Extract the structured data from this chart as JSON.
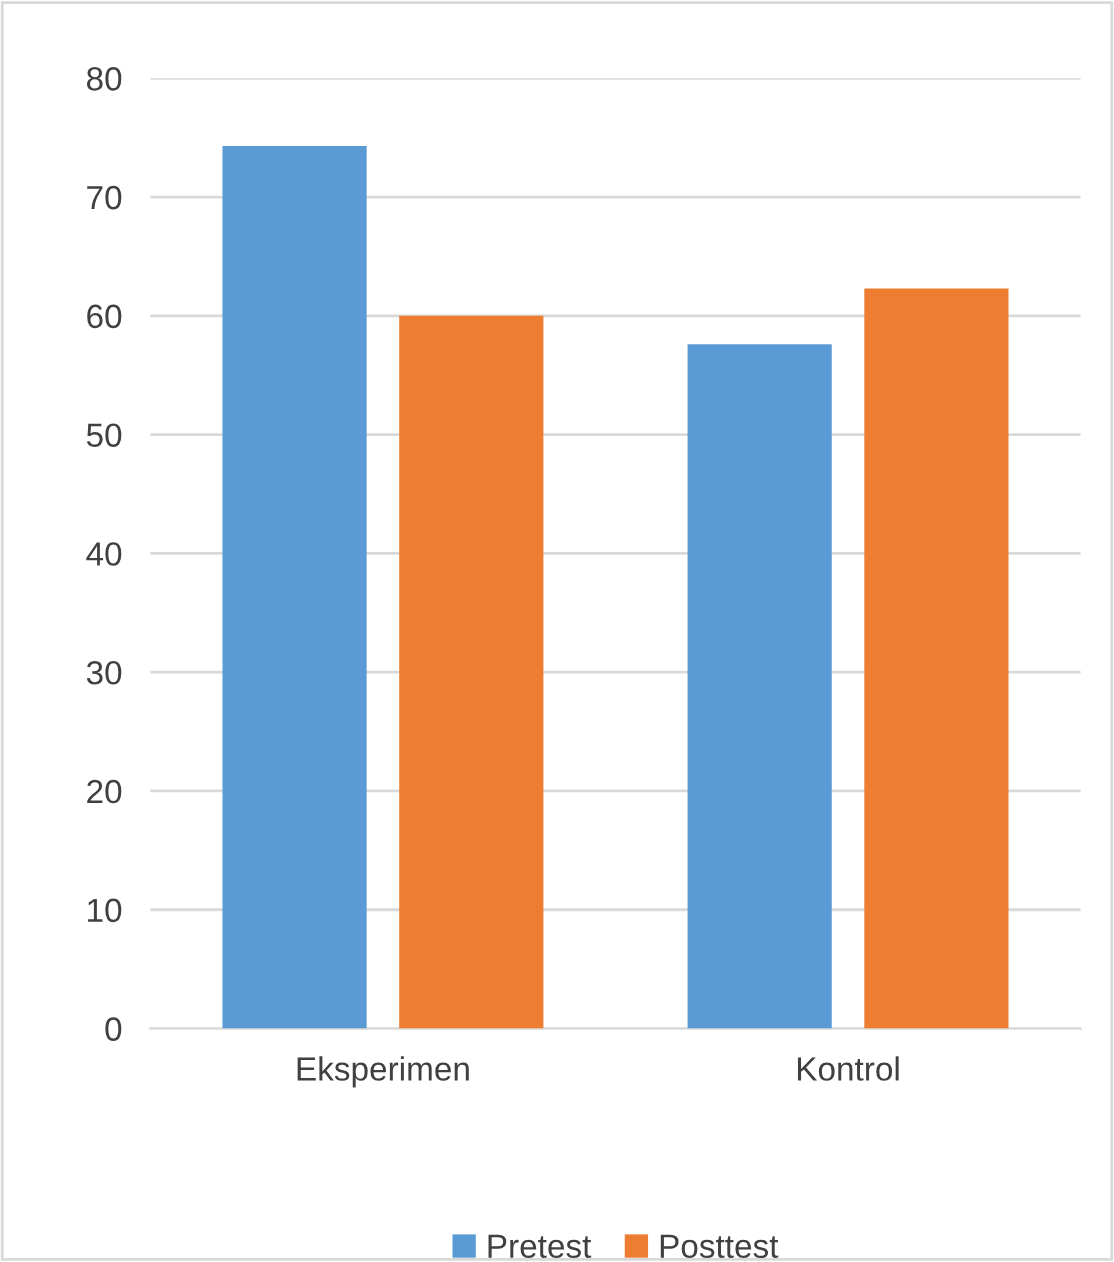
{
  "chart_data": {
    "type": "bar",
    "categories": [
      "Eksperimen",
      "Kontrol"
    ],
    "series": [
      {
        "name": "Pretest",
        "color": "#5b9bd5",
        "values": [
          74.3,
          57.6
        ]
      },
      {
        "name": "Posttest",
        "color": "#ed7d31",
        "values": [
          60,
          62.3
        ]
      }
    ],
    "ylim": [
      0,
      80
    ],
    "yticks": [
      0,
      10,
      20,
      30,
      40,
      50,
      60,
      70,
      80
    ],
    "grid": "y",
    "legend": "bottom"
  }
}
